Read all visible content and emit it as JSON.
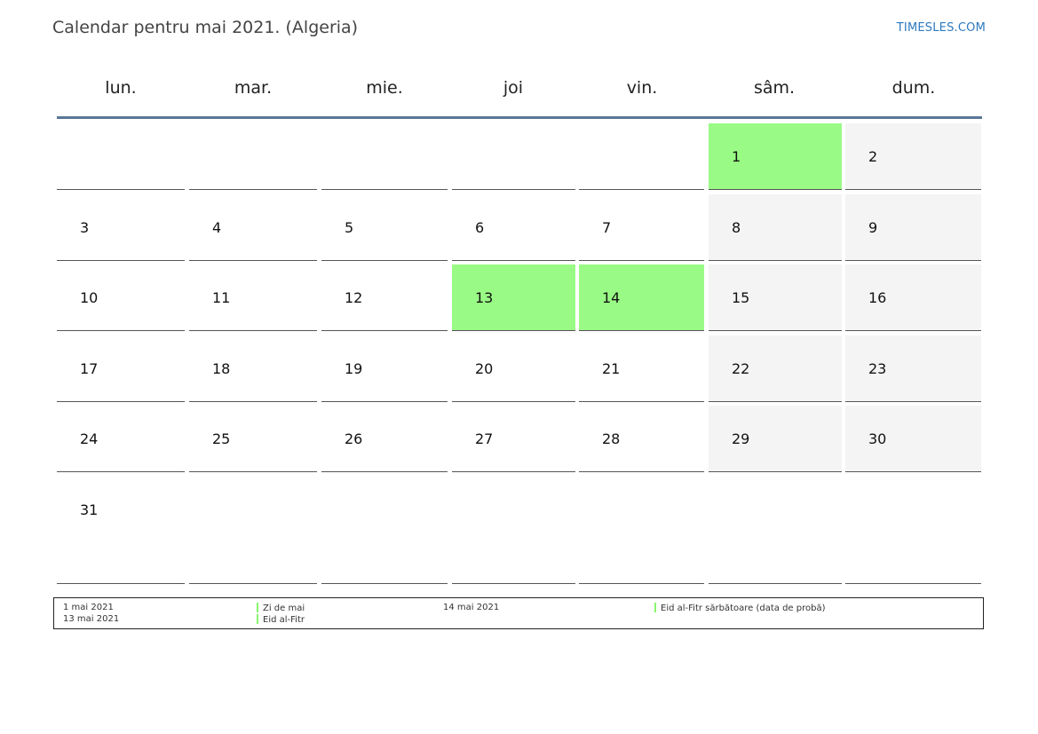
{
  "header": {
    "title": "Calendar pentru mai 2021. (Algeria)",
    "site": "TIMESLES.COM"
  },
  "weekdays": [
    "lun.",
    "mar.",
    "mie.",
    "joi",
    "vin.",
    "sâm.",
    "dum."
  ],
  "weeks": [
    [
      "",
      "",
      "",
      "",
      "",
      "1",
      "2"
    ],
    [
      "3",
      "4",
      "5",
      "6",
      "7",
      "8",
      "9"
    ],
    [
      "10",
      "11",
      "12",
      "13",
      "14",
      "15",
      "16"
    ],
    [
      "17",
      "18",
      "19",
      "20",
      "21",
      "22",
      "23"
    ],
    [
      "24",
      "25",
      "26",
      "27",
      "28",
      "29",
      "30"
    ],
    [
      "31",
      "",
      "",
      "",
      "",
      "",
      ""
    ]
  ],
  "holidays": [
    "1",
    "13",
    "14"
  ],
  "colors": {
    "holiday": "#99fb85",
    "weekend": "#f4f4f4",
    "header_rule": "#5a7797",
    "link": "#2c79c0"
  },
  "legend": [
    {
      "date": "1 mai 2021",
      "name": "Zi de mai"
    },
    {
      "date": "13 mai 2021",
      "name": "Eid al-Fitr"
    },
    {
      "date": "14 mai 2021",
      "name": "Eid al-Fitr sărbătoare (data de probă)"
    }
  ]
}
